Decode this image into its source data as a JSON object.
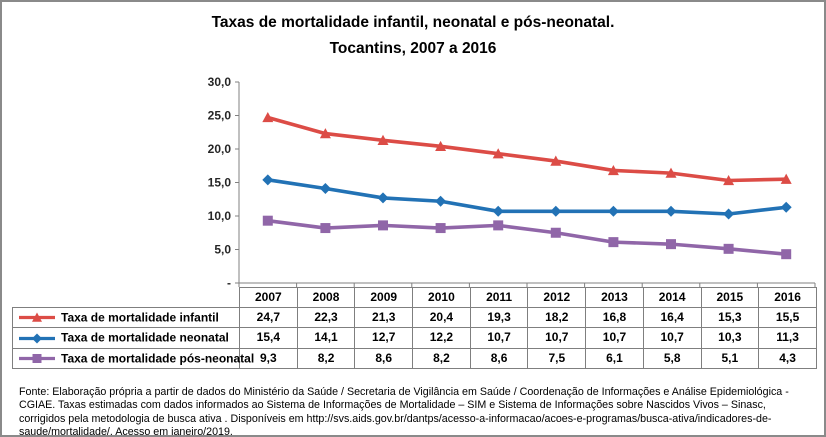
{
  "title": {
    "line1": "Taxas de mortalidade infantil, neonatal e pós-neonatal.",
    "line2": "Tocantins, 2007 a 2016"
  },
  "chart_data": {
    "type": "line",
    "categories": [
      "2007",
      "2008",
      "2009",
      "2010",
      "2011",
      "2012",
      "2013",
      "2014",
      "2015",
      "2016"
    ],
    "series": [
      {
        "name": "Taxa de mortalidade infantil",
        "color": "#dc4c46",
        "marker": "triangle",
        "values": [
          24.7,
          22.3,
          21.3,
          20.4,
          19.3,
          18.2,
          16.8,
          16.4,
          15.3,
          15.5
        ],
        "values_display": [
          "24,7",
          "22,3",
          "21,3",
          "20,4",
          "19,3",
          "18,2",
          "16,8",
          "16,4",
          "15,3",
          "15,5"
        ]
      },
      {
        "name": "Taxa de mortalidade neonatal",
        "color": "#2272b5",
        "marker": "diamond",
        "values": [
          15.4,
          14.1,
          12.7,
          12.2,
          10.7,
          10.7,
          10.7,
          10.7,
          10.3,
          11.3
        ],
        "values_display": [
          "15,4",
          "14,1",
          "12,7",
          "12,2",
          "10,7",
          "10,7",
          "10,7",
          "10,7",
          "10,3",
          "11,3"
        ]
      },
      {
        "name": "Taxa de mortalidade pós-neonatal",
        "color": "#9066a8",
        "marker": "square",
        "values": [
          9.3,
          8.2,
          8.6,
          8.2,
          8.6,
          7.5,
          6.1,
          5.8,
          5.1,
          4.3
        ],
        "values_display": [
          "9,3",
          "8,2",
          "8,6",
          "8,2",
          "8,6",
          "7,5",
          "6,1",
          "5,8",
          "5,1",
          "4,3"
        ]
      }
    ],
    "ylim": [
      0,
      30
    ],
    "ytick_step": 5,
    "ytick_labels": [
      "-",
      "5,0",
      "10,0",
      "15,0",
      "20,0",
      "25,0",
      "30,0"
    ],
    "grid": false,
    "legend_position": "data-table-left-column"
  },
  "footer": {
    "text": "Fonte: Elaboração própria a partir de dados do Ministério da Saúde / Secretaria de Vigilância em Saúde / Coordenação de Informações e Análise Epidemiológica - CGIAE.  Taxas estimadas com dados informados ao Sistema de Informações de Mortalidade – SIM e Sistema de Informações sobre Nascidos Vivos – Sinasc, corrigidos pela metodologia de busca ativa . Disponíveis em http://svs.aids.gov.br/dantps/acesso-a-informacao/acoes-e-programas/busca-ativa/indicadores-de-saude/mortalidade/. Acesso em janeiro/2019."
  },
  "colors": {
    "axis": "#808080",
    "table_border": "#7f7f7f",
    "frame_border": "#8a8a8a"
  }
}
